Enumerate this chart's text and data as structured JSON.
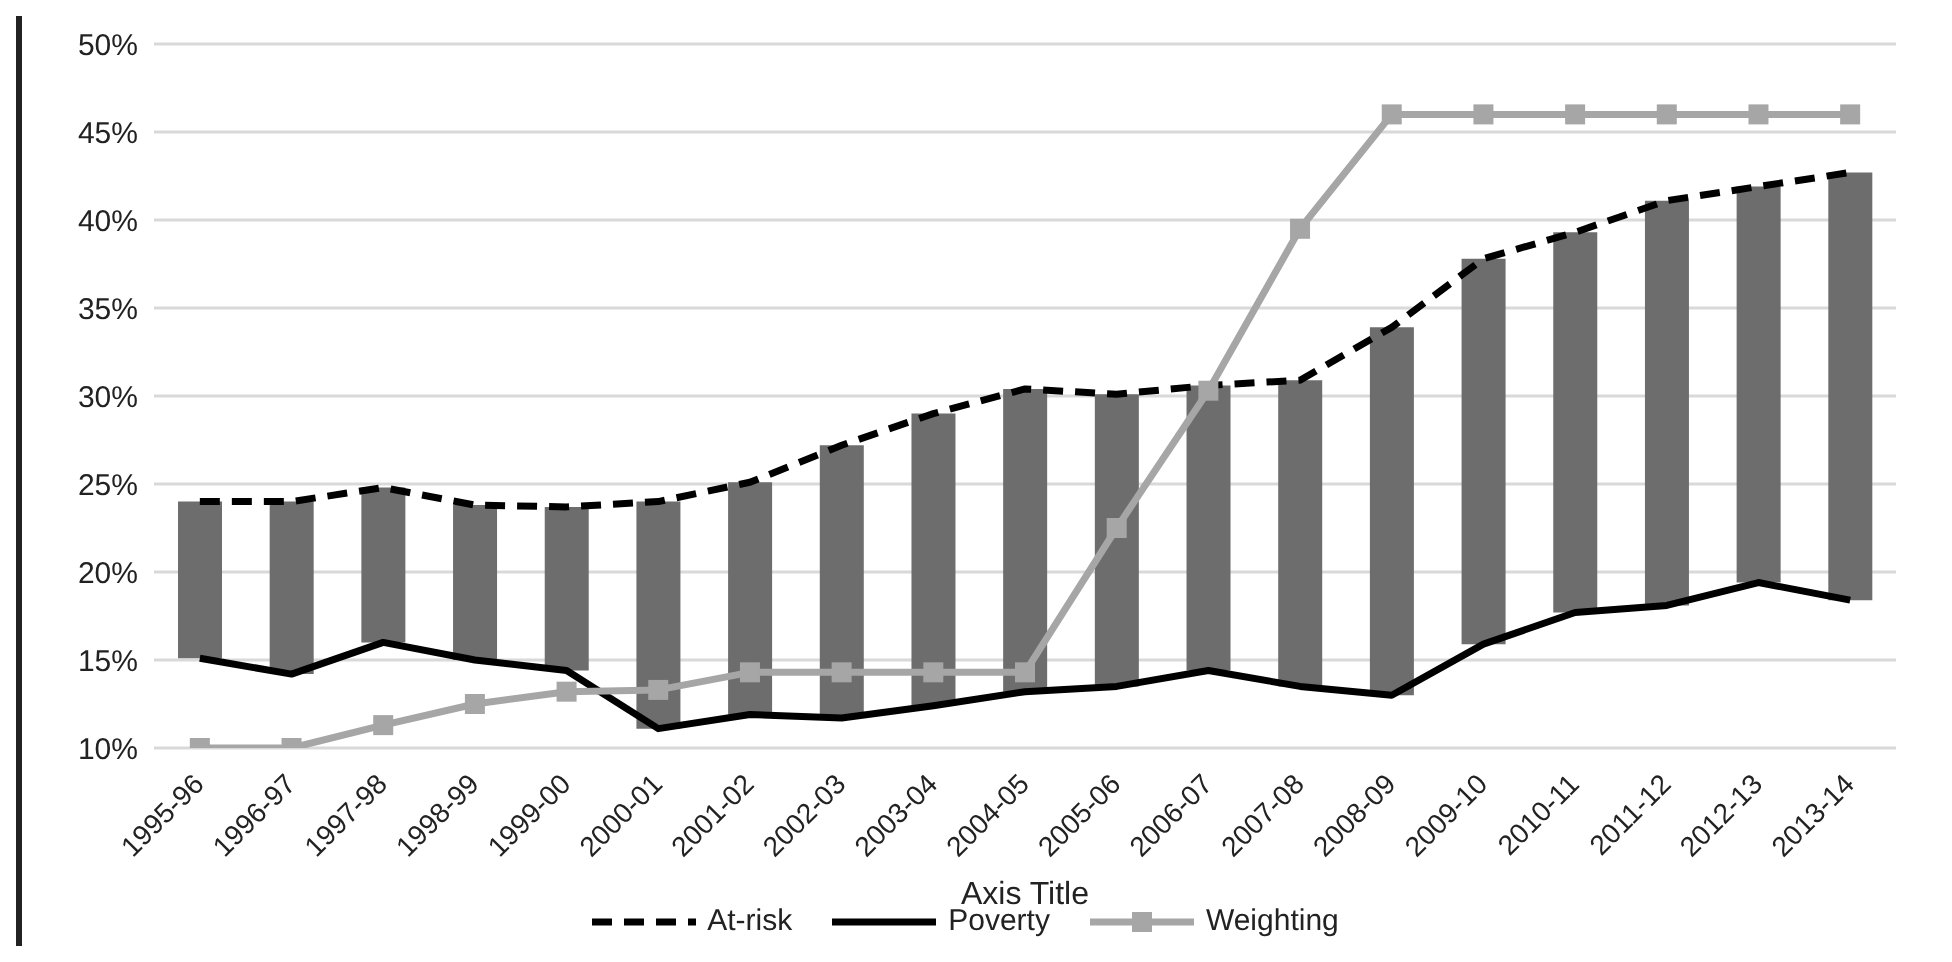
{
  "chart_data": {
    "type": "line",
    "xlabel": "Axis Title",
    "categories": [
      "1995-96",
      "1996-97",
      "1997-98",
      "1998-99",
      "1999-00",
      "2000-01",
      "2001-02",
      "2002-03",
      "2003-04",
      "2004-05",
      "2005-06",
      "2006-07",
      "2007-08",
      "2008-09",
      "2009-10",
      "2010-11",
      "2011-12",
      "2012-13",
      "2013-14"
    ],
    "series": [
      {
        "type": "bar",
        "color": "#6d6d6d",
        "base": [
          15.1,
          14.2,
          16.0,
          15.0,
          14.4,
          11.1,
          11.9,
          11.7,
          12.4,
          13.2,
          13.5,
          14.4,
          13.5,
          13.0,
          15.9,
          17.7,
          18.1,
          19.4,
          18.4
        ],
        "values": [
          8.9,
          9.8,
          8.8,
          8.8,
          9.3,
          12.9,
          13.2,
          15.5,
          16.6,
          17.2,
          16.6,
          16.2,
          17.4,
          20.9,
          21.9,
          21.6,
          23.0,
          22.5,
          24.3
        ]
      },
      {
        "name": "At-risk",
        "color": "#000000",
        "line_style": "dashed",
        "marker": "none",
        "values": [
          24.0,
          24.0,
          24.8,
          23.8,
          23.7,
          24.0,
          25.1,
          27.2,
          29.0,
          30.4,
          30.1,
          30.6,
          30.9,
          33.9,
          37.8,
          39.3,
          41.1,
          41.9,
          42.7
        ]
      },
      {
        "name": "Poverty",
        "color": "#000000",
        "line_style": "solid",
        "marker": "none",
        "values": [
          15.1,
          14.2,
          16.0,
          15.0,
          14.4,
          11.1,
          11.9,
          11.7,
          12.4,
          13.2,
          13.5,
          14.4,
          13.5,
          13.0,
          15.9,
          17.7,
          18.1,
          19.4,
          18.4
        ]
      },
      {
        "name": "Weighting",
        "color": "#a6a6a6",
        "line_style": "solid",
        "marker": "square",
        "values": [
          10.0,
          10.0,
          11.3,
          12.5,
          13.2,
          13.3,
          14.3,
          14.3,
          14.3,
          14.3,
          22.5,
          30.3,
          39.5,
          46.0,
          46.0,
          46.0,
          46.0,
          46.0,
          46.0
        ]
      }
    ],
    "ylim": [
      10,
      50
    ],
    "yticks": [
      {
        "value": 10,
        "label": "10%"
      },
      {
        "value": 15,
        "label": "15%"
      },
      {
        "value": 20,
        "label": "20%"
      },
      {
        "value": 25,
        "label": "25%"
      },
      {
        "value": 30,
        "label": "30%"
      },
      {
        "value": 35,
        "label": "35%"
      },
      {
        "value": 40,
        "label": "40%"
      },
      {
        "value": 45,
        "label": "45%"
      },
      {
        "value": 50,
        "label": "50%"
      }
    ],
    "grid": "y",
    "legend": "bottom"
  }
}
